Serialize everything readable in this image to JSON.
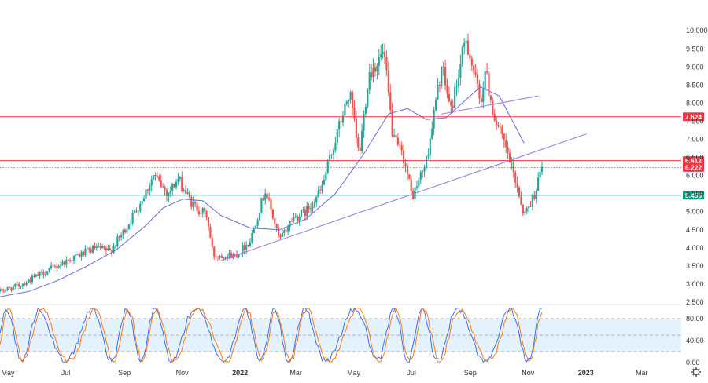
{
  "chart_data": [
    {
      "type": "candlestick",
      "title": "",
      "x_ticks": [
        "May",
        "Jul",
        "Sep",
        "Nov",
        "2022",
        "Mar",
        "May",
        "Jul",
        "Sep",
        "Nov",
        "2023",
        "Mar"
      ],
      "x_ticks_bold": [
        "2022",
        "2023"
      ],
      "y_ticks": [
        "2.500",
        "3.000",
        "3.500",
        "4.000",
        "4.500",
        "5.000",
        "5.500",
        "6.000",
        "6.500",
        "7.000",
        "7.500",
        "8.000",
        "8.500",
        "9.000",
        "9.500",
        "10.000"
      ],
      "ylim": [
        2.5,
        10.2
      ],
      "grid": false,
      "anchors": [
        [
          "2021-05-01",
          2.8
        ],
        [
          "2021-05-20",
          2.95
        ],
        [
          "2021-06-15",
          3.3
        ],
        [
          "2021-07-15",
          3.7
        ],
        [
          "2021-08-10",
          4.0
        ],
        [
          "2021-08-25",
          3.9
        ],
        [
          "2021-09-10",
          4.5
        ],
        [
          "2021-09-25",
          5.2
        ],
        [
          "2021-10-10",
          6.0
        ],
        [
          "2021-10-25",
          5.5
        ],
        [
          "2021-11-05",
          5.9
        ],
        [
          "2021-11-20",
          5.2
        ],
        [
          "2021-12-05",
          4.9
        ],
        [
          "2021-12-12",
          3.8
        ],
        [
          "2022-01-05",
          3.8
        ],
        [
          "2022-01-20",
          4.2
        ],
        [
          "2022-02-05",
          5.6
        ],
        [
          "2022-02-20",
          4.2
        ],
        [
          "2022-03-05",
          4.8
        ],
        [
          "2022-03-20",
          5.0
        ],
        [
          "2022-04-05",
          5.6
        ],
        [
          "2022-04-20",
          7.0
        ],
        [
          "2022-05-05",
          8.3
        ],
        [
          "2022-05-15",
          6.5
        ],
        [
          "2022-05-25",
          8.8
        ],
        [
          "2022-06-10",
          9.4
        ],
        [
          "2022-06-20",
          7.0
        ],
        [
          "2022-07-01",
          6.5
        ],
        [
          "2022-07-10",
          5.4
        ],
        [
          "2022-07-25",
          6.4
        ],
        [
          "2022-08-10",
          9.0
        ],
        [
          "2022-08-20",
          7.8
        ],
        [
          "2022-09-05",
          9.8
        ],
        [
          "2022-09-20",
          8.0
        ],
        [
          "2022-09-25",
          8.9
        ],
        [
          "2022-10-05",
          7.6
        ],
        [
          "2022-10-20",
          6.5
        ],
        [
          "2022-10-30",
          5.6
        ],
        [
          "2022-11-05",
          4.9
        ],
        [
          "2022-11-15",
          5.4
        ],
        [
          "2022-11-25",
          6.3
        ]
      ],
      "series": [
        {
          "type": "line",
          "values": [
            [
              "2021-05-01",
              2.65
            ],
            [
              "2021-06-01",
              2.8
            ],
            [
              "2021-07-01",
              3.1
            ],
            [
              "2021-08-01",
              3.5
            ],
            [
              "2021-09-01",
              3.95
            ],
            [
              "2021-10-01",
              4.6
            ],
            [
              "2021-10-20",
              5.1
            ],
            [
              "2021-11-10",
              5.35
            ],
            [
              "2021-12-01",
              5.3
            ],
            [
              "2021-12-20",
              4.9
            ],
            [
              "2022-01-20",
              4.55
            ],
            [
              "2022-02-20",
              4.5
            ],
            [
              "2022-03-20",
              4.8
            ],
            [
              "2022-04-20",
              5.5
            ],
            [
              "2022-05-20",
              6.6
            ],
            [
              "2022-06-15",
              7.7
            ],
            [
              "2022-07-05",
              7.85
            ],
            [
              "2022-07-25",
              7.55
            ],
            [
              "2022-08-15",
              7.6
            ],
            [
              "2022-09-05",
              8.1
            ],
            [
              "2022-09-20",
              8.45
            ],
            [
              "2022-10-10",
              8.2
            ],
            [
              "2022-11-05",
              6.9
            ]
          ]
        }
      ],
      "trendlines": [
        {
          "points": [
            [
              "2021-12-20",
              3.65
            ],
            [
              "2023-01-10",
              7.15
            ]
          ]
        },
        {
          "points": [
            [
              "2022-08-10",
              7.7
            ],
            [
              "2022-11-20",
              8.2
            ]
          ]
        }
      ],
      "horizontal_levels": [
        {
          "value": 7.624,
          "label": "7.624",
          "style": "solid",
          "color": "#f23645"
        },
        {
          "value": 6.412,
          "label": "6.412",
          "style": "solid",
          "color": "#f23645"
        },
        {
          "value": 6.222,
          "label": "6.222",
          "style": "dotted",
          "color": "#f23645"
        },
        {
          "value": 5.455,
          "label": "5.455",
          "style": "solid",
          "color": "#089981"
        }
      ]
    },
    {
      "type": "line",
      "title": "",
      "y_ticks": [
        "0.00",
        "40.00",
        "80.00"
      ],
      "ylim": [
        0,
        100
      ],
      "band": [
        20,
        80
      ],
      "reference_lines": [
        80,
        50,
        20
      ],
      "series": [
        {
          "color": "#2962ff",
          "period_days": 40,
          "phase": 0
        },
        {
          "color": "#ff6d00",
          "period_days": 40,
          "phase": 0.35
        }
      ]
    }
  ],
  "colors": {
    "up": "#26a69a",
    "down": "#ef5350",
    "ma_line": "#5b6fd6",
    "trendline": "#9c7fe0",
    "band_fill": "#e3f2fd"
  },
  "settings_icon": "gear-icon"
}
